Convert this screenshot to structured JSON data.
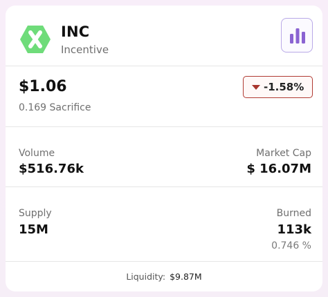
{
  "token": {
    "symbol": "INC",
    "name": "Incentive",
    "logo_icon": "hexagon-x-logo-icon",
    "brand_color": "#6fdc7a"
  },
  "price": {
    "value": "$1.06",
    "sacrifice": "0.169 Sacrifice",
    "change": "-1.58%",
    "change_color": "#a8342c"
  },
  "stats": {
    "volume_label": "Volume",
    "volume_value": "$516.76k",
    "market_cap_label": "Market Cap",
    "market_cap_value": "$ 16.07M",
    "supply_label": "Supply",
    "supply_value": "15M",
    "burned_label": "Burned",
    "burned_value": "113k",
    "burned_pct": "0.746 %"
  },
  "footer": {
    "liquidity_label": "Liquidity:",
    "liquidity_value": "$9.87M"
  },
  "chart_button": {
    "icon": "bar-chart-icon",
    "accent": "#8a63d2"
  }
}
